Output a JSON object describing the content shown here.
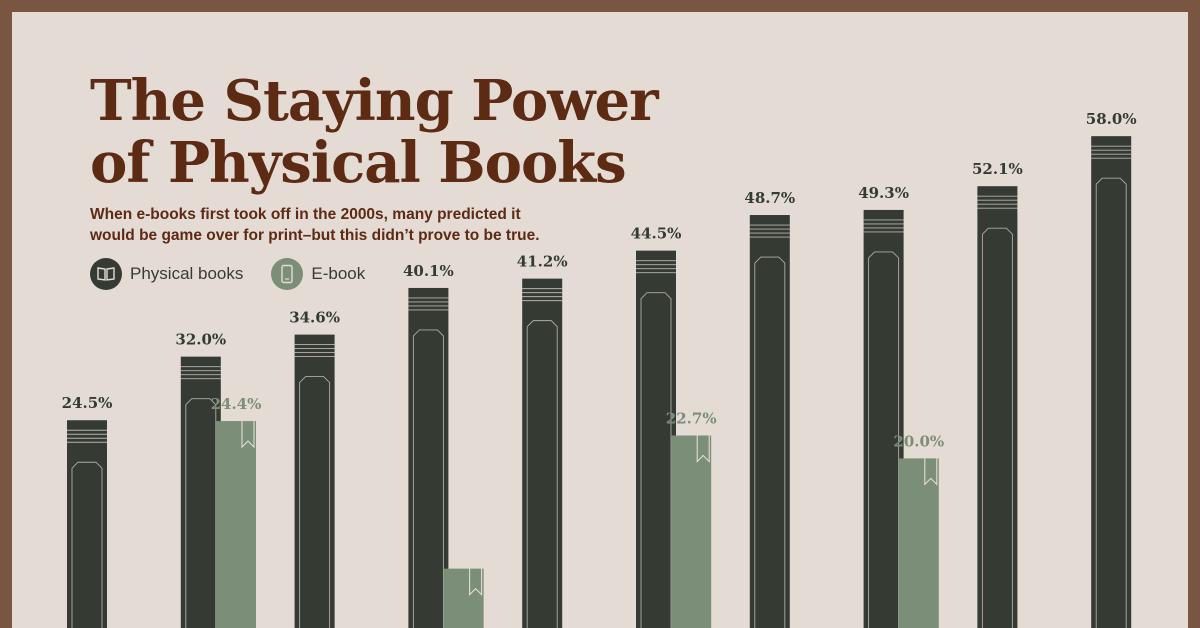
{
  "header": {
    "title_line1": "The Staying Power",
    "title_line2": "of Physical Books",
    "subtitle_line1": "When e-books first took off in the 2000s, many predicted it",
    "subtitle_line2": "would be game over for print–but this didn’t prove to be true."
  },
  "legend": {
    "physical_label": "Physical books",
    "ebook_label": "E-book",
    "physical_icon": "open-book-icon",
    "ebook_icon": "tablet-icon"
  },
  "colors": {
    "physical": "#353b33",
    "ebook": "#7b8e78",
    "title": "#5d2a13",
    "background": "#e4dbd5",
    "border": "#7a5540"
  },
  "chart_data": {
    "type": "bar",
    "title": "The Staying Power of Physical Books",
    "categories": [
      "",
      "",
      "",
      "",
      "",
      "",
      "",
      "",
      "",
      ""
    ],
    "series": [
      {
        "name": "Physical books",
        "values": [
          24.5,
          32.0,
          34.6,
          40.1,
          41.2,
          44.5,
          48.7,
          49.3,
          52.1,
          58.0
        ],
        "labels": [
          "24.5%",
          "32.0%",
          "34.6%",
          "40.1%",
          "41.2%",
          "44.5%",
          "48.7%",
          "49.3%",
          "52.1%",
          "58.0%"
        ]
      },
      {
        "name": "E-book",
        "values": [
          null,
          24.4,
          null,
          7.0,
          null,
          22.7,
          null,
          20.0,
          null,
          null
        ],
        "labels": [
          "",
          "24.4%",
          "",
          "",
          "",
          "22.7%",
          "",
          "20.0%",
          "",
          ""
        ]
      }
    ],
    "ylim": [
      0,
      62
    ],
    "grid": false,
    "legend_position": "top-left"
  }
}
